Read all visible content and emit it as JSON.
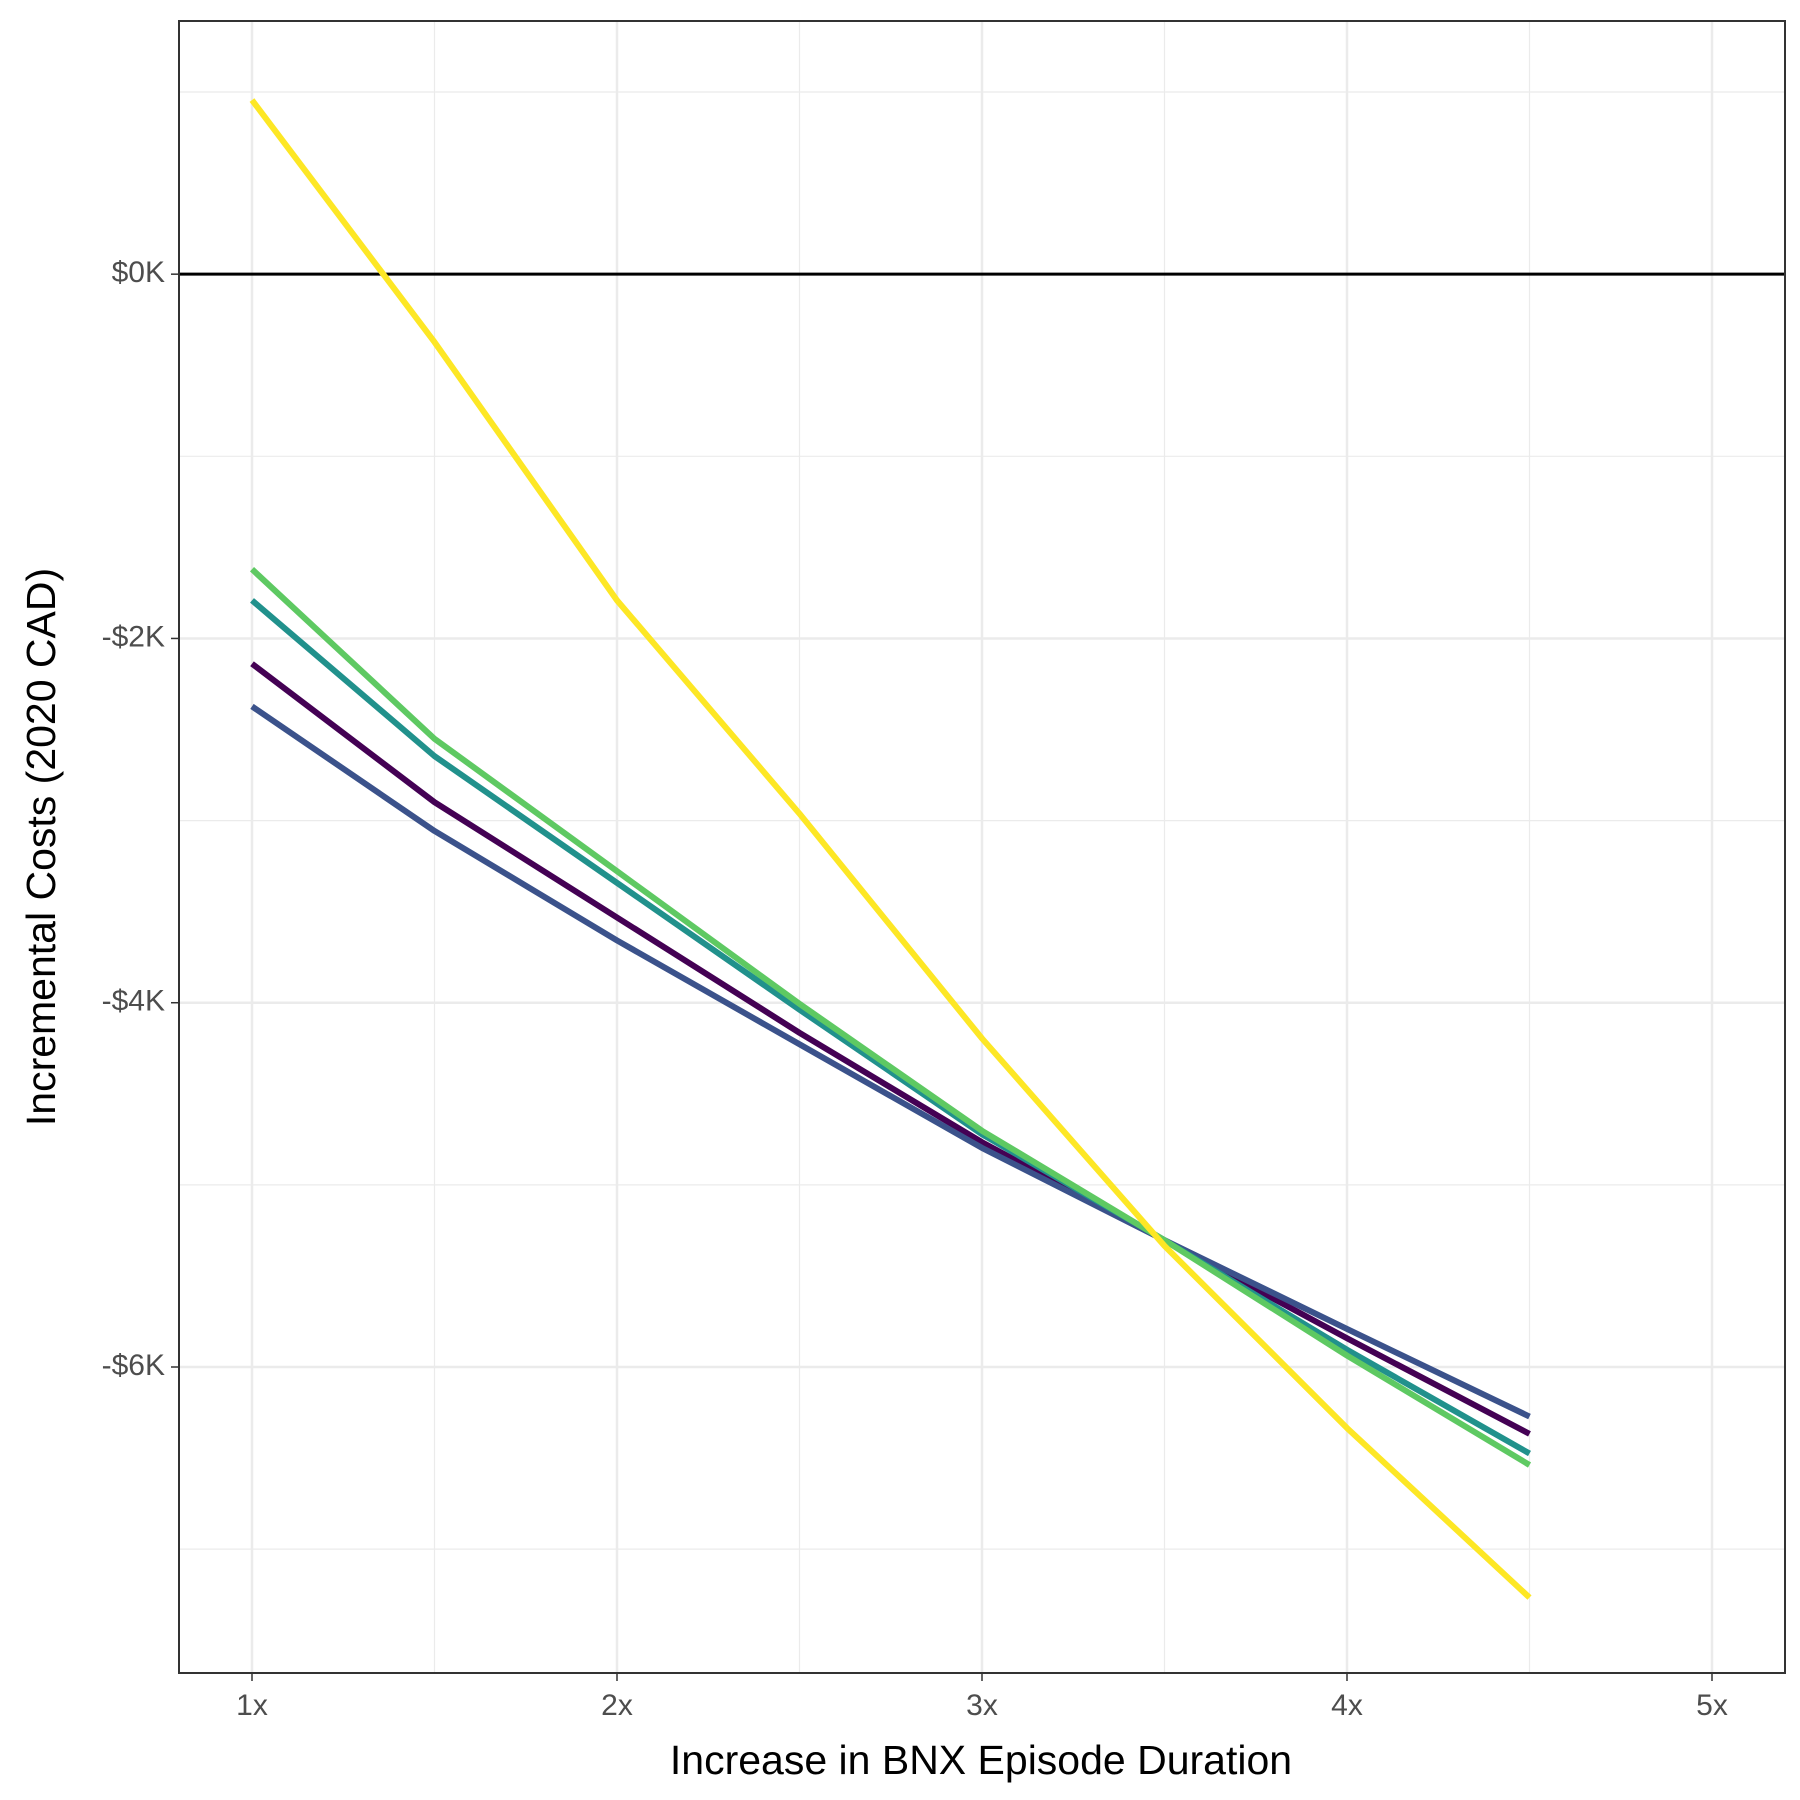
{
  "chart_data": {
    "type": "line",
    "x_label": "Increase in BNX Episode Duration",
    "y_label": "Incremental Costs (2020 CAD)",
    "x": [
      1,
      1.5,
      2,
      2.5,
      3,
      3.5,
      4,
      4.5
    ],
    "series": [
      {
        "color": "#440154",
        "values": [
          -2139,
          -2899,
          -3532,
          -4165,
          -4766,
          -5304,
          -5842,
          -6367
        ]
      },
      {
        "color": "#3b528b",
        "values": [
          -2373,
          -3057,
          -3658,
          -4228,
          -4797,
          -5304,
          -5791,
          -6272
        ]
      },
      {
        "color": "#21918c",
        "values": [
          -1791,
          -2646,
          -3342,
          -4038,
          -4722,
          -5304,
          -5905,
          -6475
        ]
      },
      {
        "color": "#5ec962",
        "values": [
          -1620,
          -2551,
          -3278,
          -4006,
          -4703,
          -5304,
          -5937,
          -6538
        ]
      },
      {
        "color": "#fde725",
        "values": [
          956,
          -373,
          -1791,
          -2962,
          -4196,
          -5335,
          -6335,
          -7266
        ]
      }
    ],
    "xlim": [
      0.8,
      5.2
    ],
    "ylim": [
      -7680,
      1390
    ],
    "xticks": [
      {
        "value": 1,
        "label": "1x"
      },
      {
        "value": 2,
        "label": "2x"
      },
      {
        "value": 3,
        "label": "3x"
      },
      {
        "value": 4,
        "label": "4x"
      },
      {
        "value": 5,
        "label": "5x"
      }
    ],
    "yticks": [
      {
        "value": -6000,
        "label": "-$6K"
      },
      {
        "value": -4000,
        "label": "-$4K"
      },
      {
        "value": -2000,
        "label": "-$2K"
      },
      {
        "value": 0,
        "label": "$0K"
      }
    ],
    "xminorticks": [
      1.5,
      2.5,
      3.5,
      4.5
    ],
    "yminorticks": [
      -7000,
      -5000,
      -3000,
      -1000,
      1000
    ],
    "hline": 0,
    "grid": true
  }
}
